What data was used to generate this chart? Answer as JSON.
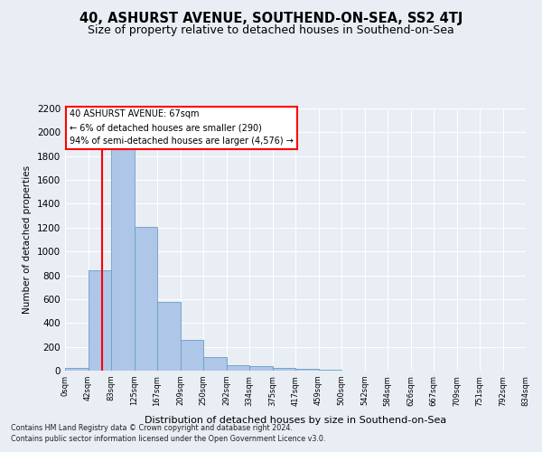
{
  "title": "40, ASHURST AVENUE, SOUTHEND-ON-SEA, SS2 4TJ",
  "subtitle": "Size of property relative to detached houses in Southend-on-Sea",
  "xlabel": "Distribution of detached houses by size in Southend-on-Sea",
  "ylabel": "Number of detached properties",
  "footnote1": "Contains HM Land Registry data © Crown copyright and database right 2024.",
  "footnote2": "Contains public sector information licensed under the Open Government Licence v3.0.",
  "bin_labels": [
    "0sqm",
    "42sqm",
    "83sqm",
    "125sqm",
    "167sqm",
    "209sqm",
    "250sqm",
    "292sqm",
    "334sqm",
    "375sqm",
    "417sqm",
    "459sqm",
    "500sqm",
    "542sqm",
    "584sqm",
    "626sqm",
    "667sqm",
    "709sqm",
    "751sqm",
    "792sqm",
    "834sqm"
  ],
  "bar_heights": [
    25,
    840,
    1900,
    1210,
    580,
    260,
    115,
    45,
    35,
    25,
    15,
    10,
    0,
    0,
    0,
    0,
    0,
    0,
    0,
    0
  ],
  "bar_color": "#aec6e8",
  "bar_edge_color": "#6a9ec5",
  "annotation_title": "40 ASHURST AVENUE: 67sqm",
  "annotation_line1": "← 6% of detached houses are smaller (290)",
  "annotation_line2": "94% of semi-detached houses are larger (4,576) →",
  "ylim": [
    0,
    2200
  ],
  "yticks": [
    0,
    200,
    400,
    600,
    800,
    1000,
    1200,
    1400,
    1600,
    1800,
    2000,
    2200
  ],
  "background_color": "#e8eef4",
  "grid_color": "#ffffff",
  "title_fontsize": 10.5,
  "subtitle_fontsize": 9
}
